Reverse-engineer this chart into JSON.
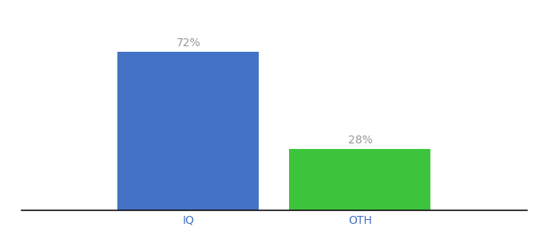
{
  "categories": [
    "IQ",
    "OTH"
  ],
  "values": [
    72,
    28
  ],
  "bar_colors": [
    "#4472C4",
    "#3DC43D"
  ],
  "label_texts": [
    "72%",
    "28%"
  ],
  "ylim": [
    0,
    88
  ],
  "background_color": "#ffffff",
  "bar_width": 0.28,
  "label_fontsize": 10,
  "tick_fontsize": 10,
  "label_color": "#999999",
  "tick_color": "#4472C4",
  "axis_line_color": "#111111",
  "xlim": [
    0.0,
    1.0
  ]
}
